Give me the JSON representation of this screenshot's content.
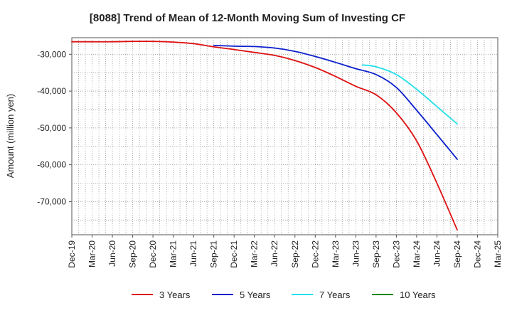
{
  "chart_data": {
    "type": "line",
    "title": "[8088]  Trend of Mean of 12-Month Moving Sum of Investing CF",
    "xlabel": "",
    "ylabel": "Amount (million yen)",
    "x_tick_labels": [
      "Dec-19",
      "Mar-20",
      "Jun-20",
      "Sep-20",
      "Dec-20",
      "Mar-21",
      "Jun-21",
      "Sep-21",
      "Dec-21",
      "Mar-22",
      "Jun-22",
      "Sep-22",
      "Dec-22",
      "Mar-23",
      "Jun-23",
      "Sep-23",
      "Dec-23",
      "Mar-24",
      "Jun-24",
      "Sep-24",
      "Dec-24",
      "Mar-25"
    ],
    "y_ticks": [
      -30000,
      -40000,
      -50000,
      -60000,
      -70000
    ],
    "y_tick_labels": [
      "-30,000",
      "-40,000",
      "-50,000",
      "-60,000",
      "-70,000"
    ],
    "ylim": [
      -79000,
      -25500
    ],
    "grid": true,
    "legend_position": "bottom",
    "series": [
      {
        "name": "3 Years",
        "color": "#dd1111",
        "x": [
          "Dec-19",
          "Mar-20",
          "Jun-20",
          "Sep-20",
          "Dec-20",
          "Mar-21",
          "Jun-21",
          "Sep-21",
          "Dec-21",
          "Mar-22",
          "Jun-22",
          "Sep-22",
          "Dec-22",
          "Mar-23",
          "Jun-23",
          "Sep-23",
          "Dec-23",
          "Mar-24",
          "Jun-24",
          "Sep-24"
        ],
        "values": [
          -26600,
          -26600,
          -26600,
          -26500,
          -26500,
          -26700,
          -27100,
          -28000,
          -28700,
          -29500,
          -30300,
          -31700,
          -33600,
          -36000,
          -38700,
          -41000,
          -45900,
          -53500,
          -65000,
          -77700
        ]
      },
      {
        "name": "5 Years",
        "color": "#0b1fcc",
        "x": [
          "Sep-21",
          "Dec-21",
          "Mar-22",
          "Jun-22",
          "Sep-22",
          "Dec-22",
          "Mar-23",
          "Jun-23",
          "Sep-23",
          "Dec-23",
          "Mar-24",
          "Jun-24",
          "Sep-24"
        ],
        "values": [
          -27600,
          -27800,
          -27900,
          -28300,
          -29200,
          -30600,
          -32200,
          -33900,
          -35500,
          -39000,
          -45200,
          -51800,
          -58500
        ]
      },
      {
        "name": "7 Years",
        "color": "#22e0e8",
        "x": [
          "Jul-23",
          "Sep-23",
          "Dec-23",
          "Mar-24",
          "Jun-24",
          "Sep-24"
        ],
        "values": [
          -32900,
          -33400,
          -35500,
          -39500,
          -44200,
          -48900
        ]
      },
      {
        "name": "10 Years",
        "color": "#1a8a1a",
        "x": [],
        "values": []
      }
    ]
  }
}
